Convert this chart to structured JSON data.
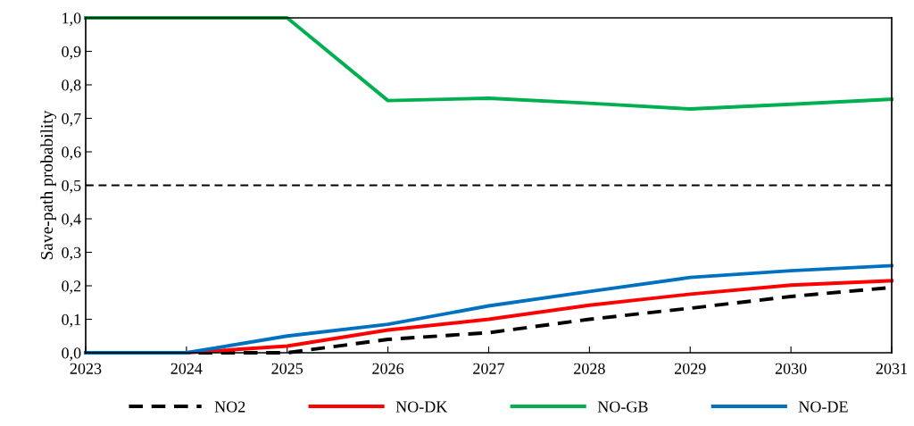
{
  "chart_data": {
    "type": "line",
    "ylabel": "Save-path probability",
    "x": [
      2023,
      2024,
      2025,
      2026,
      2027,
      2028,
      2029,
      2030,
      2031
    ],
    "series": [
      {
        "name": "NO2",
        "color": "#000000",
        "line_style": "dashed",
        "values": [
          0,
          0,
          0,
          0.04,
          0.06,
          0.1,
          0.133,
          0.168,
          0.195
        ]
      },
      {
        "name": "NO-DK",
        "color": "#ff0000",
        "values": [
          0,
          0,
          0.02,
          0.068,
          0.1,
          0.142,
          0.175,
          0.202,
          0.215
        ]
      },
      {
        "name": "NO-GB",
        "color": "#00b050",
        "values": [
          1,
          1,
          1,
          0.753,
          0.76,
          0.745,
          0.728,
          0.742,
          0.757
        ]
      },
      {
        "name": "NO-DE",
        "color": "#0070c0",
        "values": [
          0,
          0,
          0.05,
          0.085,
          0.14,
          0.183,
          0.225,
          0.245,
          0.26
        ]
      }
    ],
    "ref_lines": [
      {
        "axis": "y",
        "value": 0.5,
        "color": "#000000",
        "line_style": "dashed"
      }
    ],
    "xlim": [
      2023,
      2031
    ],
    "xticks": [
      2023,
      2024,
      2025,
      2026,
      2027,
      2028,
      2029,
      2030,
      2031
    ],
    "ylim": [
      0,
      1
    ],
    "yticks": [
      {
        "value": 0,
        "label": "0,0"
      },
      {
        "value": 0.1,
        "label": "0,1"
      },
      {
        "value": 0.2,
        "label": "0,2"
      },
      {
        "value": 0.3,
        "label": "0,3"
      },
      {
        "value": 0.4,
        "label": "0,4"
      },
      {
        "value": 0.5,
        "label": "0,5"
      },
      {
        "value": 0.6,
        "label": "0,6"
      },
      {
        "value": 0.7,
        "label": "0,7"
      },
      {
        "value": 0.8,
        "label": "0,8"
      },
      {
        "value": 0.9,
        "label": "0,9"
      },
      {
        "value": 1,
        "label": "1,0"
      }
    ],
    "legend": "bottom",
    "grid": false,
    "marker": "none"
  }
}
